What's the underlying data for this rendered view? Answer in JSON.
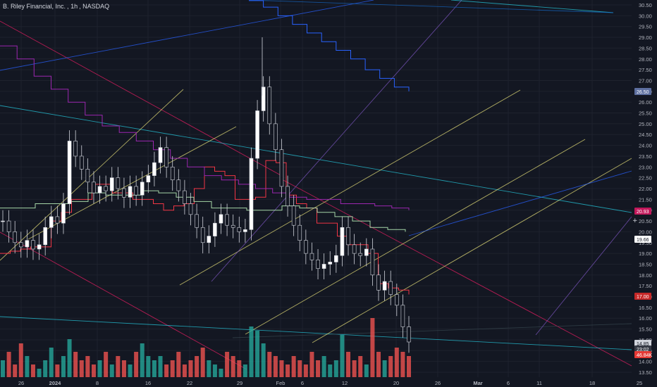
{
  "header": {
    "symbol_name": "B. Riley Financial, Inc.",
    "interval": "1h",
    "exchange": "NASDAQ"
  },
  "colors": {
    "background": "#131722",
    "grid": "#1e222d",
    "axis_text": "#b2b5be",
    "up_candle": "#ffffff",
    "down_candle": "#ffffff",
    "volume_up": "#26a69a",
    "volume_down": "#ef5350",
    "ma_red": "#f23645",
    "ma_green": "#a5d6a7",
    "ma_purple": "#9c27b0",
    "ma_blue": "#2962ff",
    "trend_yellow": "#e8e27a",
    "trend_crimson": "#e91e63",
    "trend_teal": "#26c6da",
    "trend_violet": "#7e57c2"
  },
  "chart_data": {
    "type": "candlestick",
    "title": "B. Riley Financial, Inc., 1h, NASDAQ",
    "y_axis": {
      "range": [
        13.2,
        30.8
      ],
      "ticks": [
        "13.50",
        "14.00",
        "14.50",
        "15.00",
        "15.50",
        "16.00",
        "16.50",
        "17.00",
        "17.50",
        "18.00",
        "18.50",
        "19.00",
        "19.50",
        "20.00",
        "20.50",
        "21.00",
        "21.50",
        "22.00",
        "22.50",
        "23.00",
        "23.50",
        "24.00",
        "24.50",
        "25.00",
        "25.50",
        "26.00",
        "26.50",
        "27.00",
        "27.50",
        "28.00",
        "28.50",
        "29.00",
        "29.50",
        "30.00",
        "30.50"
      ]
    },
    "x_axis": {
      "labels": [
        "26",
        "2024",
        "8",
        "16",
        "22",
        "29",
        "Feb",
        "6",
        "12",
        "20",
        "26",
        "Mar",
        "6",
        "11",
        "18",
        "25"
      ],
      "bold_labels": [
        "2024",
        "Mar"
      ]
    },
    "price_labels": [
      {
        "value": "26.50",
        "color": "#5d6fa0"
      },
      {
        "value": "20.93",
        "color": "#c2185b"
      },
      {
        "value": "19.66",
        "color": "#ffffff"
      },
      {
        "value": "17.00",
        "color": "#c62828"
      },
      {
        "value": "14.85",
        "color": "#d1d4dc"
      },
      {
        "value": "23:02",
        "color": "#363a45"
      },
      {
        "value": "46.84K",
        "color": "#e53935"
      }
    ],
    "close_series": [
      20.5,
      20.0,
      19.5,
      19.3,
      19.6,
      19.2,
      19.4,
      20.2,
      20.7,
      20.4,
      21.3,
      24.2,
      23.5,
      22.9,
      22.3,
      21.8,
      22.1,
      21.9,
      22.5,
      22.0,
      21.6,
      22.1,
      21.7,
      22.3,
      22.6,
      23.2,
      23.9,
      23.0,
      22.4,
      21.9,
      21.3,
      20.8,
      20.2,
      19.5,
      19.8,
      20.4,
      20.8,
      20.3,
      20.2,
      20.0,
      20.1,
      23.4,
      25.6,
      26.7,
      25.0,
      23.8,
      22.1,
      21.2,
      20.3,
      19.6,
      19.0,
      18.7,
      18.3,
      18.5,
      18.6,
      18.9,
      20.2,
      19.4,
      19.0,
      18.9,
      19.2,
      18.0,
      17.3,
      17.7,
      17.1,
      16.6,
      15.6,
      14.9
    ],
    "volumes": [
      4,
      6,
      3,
      8,
      5,
      3,
      2,
      4,
      7,
      3,
      5,
      9,
      6,
      4,
      5,
      3,
      4,
      6,
      3,
      5,
      4,
      3,
      6,
      8,
      5,
      4,
      5,
      3,
      4,
      6,
      3,
      4,
      5,
      7,
      4,
      3,
      2,
      6,
      5,
      4,
      3,
      12,
      11,
      8,
      6,
      5,
      4,
      3,
      5,
      4,
      3,
      6,
      4,
      5,
      3,
      4,
      10,
      6,
      4,
      5,
      3,
      14,
      6,
      4,
      5,
      7,
      6,
      5
    ],
    "moving_averages": [
      {
        "color": "#f23645",
        "values": [
          19.0,
          19.1,
          19.2,
          19.3,
          19.3,
          20.5,
          20.9,
          21.5,
          21.5,
          22.2,
          22.2,
          21.8,
          21.8,
          21.5,
          21.5,
          21.3,
          21.0,
          21.2,
          21.3,
          22.0,
          23.0,
          22.8,
          22.6,
          21.5,
          21.5,
          21.6,
          23.3,
          23.2,
          21.7,
          21.3,
          21.1,
          20.4,
          20.4,
          19.8,
          19.4,
          19.4,
          19.0,
          17.6,
          17.4,
          17.3,
          17.1
        ]
      },
      {
        "color": "#a5d6a7",
        "values": [
          21.1,
          21.1,
          21.3,
          21.3,
          21.4,
          21.8,
          21.7,
          21.7,
          21.9,
          21.8,
          21.6,
          21.4,
          21.1,
          21.1,
          21.0,
          21.0,
          21.2,
          21.1,
          20.9,
          20.7,
          20.5,
          20.2,
          20.1,
          20.0
        ]
      },
      {
        "color": "#9c27b0",
        "values": [
          28.6,
          28.0,
          27.2,
          26.6,
          26.0,
          25.4,
          24.9,
          24.6,
          24.2,
          23.8,
          23.4,
          23.0,
          22.6,
          22.4,
          22.2,
          22.0,
          21.8,
          21.6,
          21.5,
          21.5,
          21.3,
          21.3,
          21.2,
          21.1,
          21.0
        ]
      },
      {
        "color": "#2962ff",
        "values": [
          30.7,
          30.4,
          30.0,
          29.6,
          29.2,
          28.8,
          28.4,
          28.0,
          27.5,
          27.1,
          26.7,
          26.5
        ]
      }
    ]
  }
}
